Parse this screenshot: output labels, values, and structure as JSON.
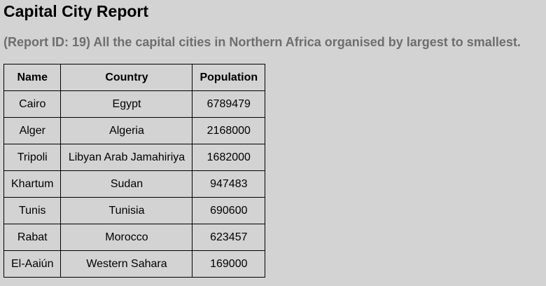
{
  "report": {
    "title": "Capital City Report",
    "subtitle": "(Report ID: 19) All the capital cities in Northern Africa organised by largest to smallest."
  },
  "table": {
    "columns": [
      "Name",
      "Country",
      "Population"
    ],
    "rows": [
      [
        "Cairo",
        "Egypt",
        "6789479"
      ],
      [
        "Alger",
        "Algeria",
        "2168000"
      ],
      [
        "Tripoli",
        "Libyan Arab Jamahiriya",
        "1682000"
      ],
      [
        "Khartum",
        "Sudan",
        "947483"
      ],
      [
        "Tunis",
        "Tunisia",
        "690600"
      ],
      [
        "Rabat",
        "Morocco",
        "623457"
      ],
      [
        "El-Aaiún",
        "Western Sahara",
        "169000"
      ]
    ]
  }
}
